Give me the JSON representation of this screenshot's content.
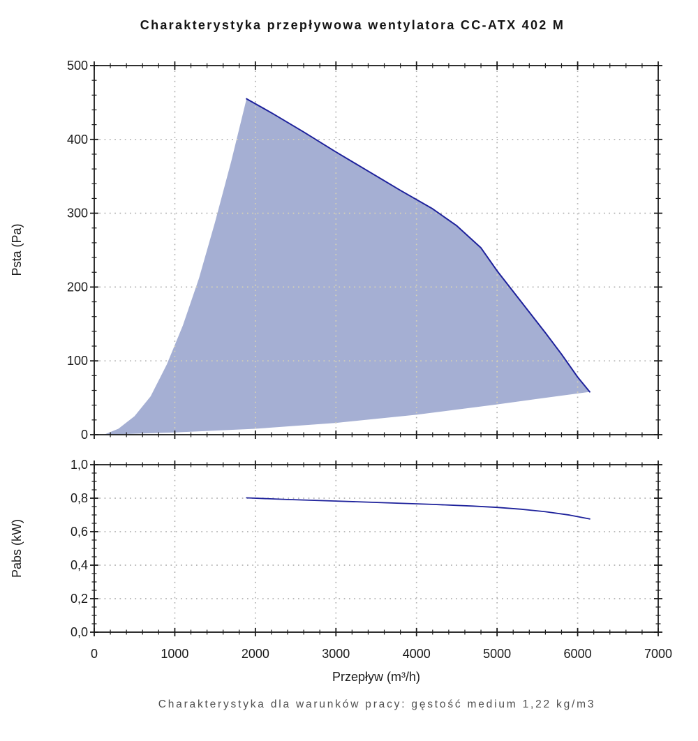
{
  "page": {
    "title": "Charakterystyka przepływowa wentylatora CC-ATX 402 M",
    "footer": "Charakterystyka dla warunków pracy: gęstość medium 1,22 kg/m3"
  },
  "colors": {
    "envelope_fill": "#a5afd3",
    "curve_line": "#1d219b",
    "grid": "#b0b0b0",
    "grid_inside_fill": "#d9d4b4",
    "axis": "#1a1a1a",
    "footer_text": "#4f4f4f"
  },
  "chart_data": [
    {
      "type": "area",
      "name": "fan-pressure-envelope",
      "xlabel": "Przepływ (m³/h)",
      "ylabel": "Psta (Pa)",
      "xlim": [
        0,
        7000
      ],
      "ylim": [
        0,
        500
      ],
      "grid": "dotted",
      "x_tick_values": [
        0,
        1000,
        2000,
        3000,
        4000,
        5000,
        6000,
        7000
      ],
      "x_tick_labels": [
        "0",
        "1000",
        "2000",
        "3000",
        "4000",
        "5000",
        "6000",
        "7000"
      ],
      "x_minor_step": 200,
      "y_tick_values": [
        0,
        100,
        200,
        300,
        400,
        500
      ],
      "y_tick_labels": [
        "0",
        "100",
        "200",
        "300",
        "400",
        "500"
      ],
      "y_minor_step": 20,
      "series": [
        {
          "name": "left-boundary-min-flow",
          "outlined": false,
          "points": [
            [
              120,
              0
            ],
            [
              300,
              8
            ],
            [
              500,
              25
            ],
            [
              700,
              52
            ],
            [
              900,
              95
            ],
            [
              1100,
              148
            ],
            [
              1300,
              212
            ],
            [
              1500,
              288
            ],
            [
              1700,
              370
            ],
            [
              1890,
              455
            ]
          ]
        },
        {
          "name": "max-pressure-curve",
          "outlined": true,
          "points": [
            [
              1890,
              455
            ],
            [
              2200,
              436
            ],
            [
              2600,
              410
            ],
            [
              3000,
              383
            ],
            [
              3400,
              357
            ],
            [
              3800,
              331
            ],
            [
              4200,
              306
            ],
            [
              4500,
              283
            ],
            [
              4800,
              253
            ],
            [
              5000,
              222
            ],
            [
              5200,
              194
            ],
            [
              5400,
              166
            ],
            [
              5600,
              138
            ],
            [
              5800,
              109
            ],
            [
              6000,
              78
            ],
            [
              6150,
              58
            ]
          ]
        },
        {
          "name": "lower-boundary-min-pressure",
          "outlined": false,
          "points": [
            [
              120,
              0
            ],
            [
              1000,
              3
            ],
            [
              2000,
              8
            ],
            [
              3000,
              16
            ],
            [
              4000,
              27
            ],
            [
              5000,
              41
            ],
            [
              5600,
              50
            ],
            [
              6150,
              58
            ]
          ]
        }
      ]
    },
    {
      "type": "line",
      "name": "fan-power-curve",
      "xlabel": "Przepływ (m³/h)",
      "ylabel": "Pabs (kW)",
      "xlim": [
        0,
        7000
      ],
      "ylim": [
        0,
        1.0
      ],
      "grid": "dotted",
      "y_tick_values": [
        0,
        0.2,
        0.4,
        0.6,
        0.8,
        1.0
      ],
      "y_tick_labels": [
        "0,0",
        "0,2",
        "0,4",
        "0,6",
        "0,8",
        "1,0"
      ],
      "y_minor_step": 0.05,
      "series": [
        {
          "name": "Pabs",
          "points": [
            [
              1890,
              0.802
            ],
            [
              2400,
              0.792
            ],
            [
              3000,
              0.783
            ],
            [
              3600,
              0.773
            ],
            [
              4200,
              0.763
            ],
            [
              4700,
              0.753
            ],
            [
              5000,
              0.745
            ],
            [
              5300,
              0.734
            ],
            [
              5600,
              0.719
            ],
            [
              5900,
              0.699
            ],
            [
              6150,
              0.676
            ]
          ]
        }
      ]
    }
  ]
}
